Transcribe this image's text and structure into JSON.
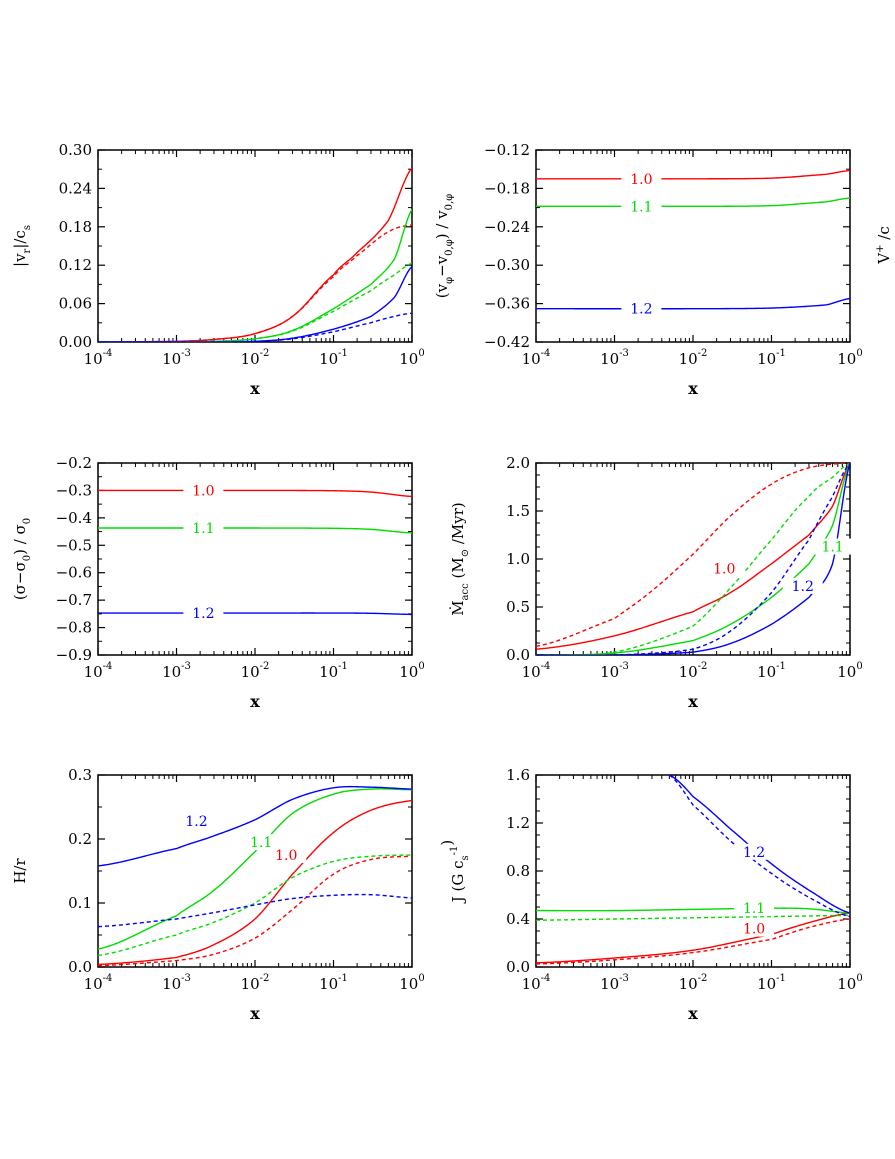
{
  "chart_data": [
    {
      "id": "vr",
      "type": "line",
      "title": "",
      "xscale": "log",
      "xlim": [
        0.0001,
        1
      ],
      "ylim": [
        0,
        0.3
      ],
      "yticks": [
        0,
        0.06,
        0.12,
        0.18,
        0.24,
        0.3
      ],
      "ytick_labels": [
        "0.00",
        "0.06",
        "0.12",
        "0.18",
        "0.24",
        "0.30"
      ],
      "xlabel": "x",
      "ylabel": {
        "main": "|v",
        "sub1": "r",
        "mid": "|/c",
        "sub2": "s"
      },
      "series": [
        {
          "name": "1.0",
          "color": "#ff0000",
          "dash": false,
          "x": [
            0.0001,
            0.001,
            0.003,
            0.01,
            0.03,
            0.1,
            0.2,
            0.5,
            1
          ],
          "y": [
            0.0,
            0.001,
            0.004,
            0.013,
            0.04,
            0.105,
            0.14,
            0.19,
            0.272
          ]
        },
        {
          "name": "1.0",
          "color": "#ff0000",
          "dash": true,
          "x": [
            0.0001,
            0.001,
            0.003,
            0.01,
            0.03,
            0.1,
            0.2,
            0.5,
            1
          ],
          "y": [
            0.0,
            0.001,
            0.004,
            0.013,
            0.04,
            0.102,
            0.135,
            0.172,
            0.183
          ]
        },
        {
          "name": "1.1",
          "color": "#00dd00",
          "dash": false,
          "x": [
            0.0001,
            0.001,
            0.003,
            0.01,
            0.03,
            0.1,
            0.3,
            0.6,
            1
          ],
          "y": [
            0.0,
            0.0,
            0.001,
            0.005,
            0.018,
            0.052,
            0.09,
            0.13,
            0.207
          ]
        },
        {
          "name": "1.1",
          "color": "#00dd00",
          "dash": true,
          "x": [
            0.0001,
            0.001,
            0.003,
            0.01,
            0.03,
            0.1,
            0.3,
            0.6,
            1
          ],
          "y": [
            0.0,
            0.0,
            0.001,
            0.005,
            0.017,
            0.048,
            0.08,
            0.105,
            0.123
          ]
        },
        {
          "name": "1.2",
          "color": "#0000ff",
          "dash": false,
          "x": [
            0.0001,
            0.001,
            0.003,
            0.01,
            0.03,
            0.1,
            0.3,
            0.6,
            1
          ],
          "y": [
            0.0,
            0.0,
            0.0,
            0.001,
            0.006,
            0.02,
            0.04,
            0.07,
            0.118
          ]
        },
        {
          "name": "1.2",
          "color": "#0000ff",
          "dash": true,
          "x": [
            0.0001,
            0.001,
            0.003,
            0.01,
            0.03,
            0.1,
            0.3,
            0.6,
            1
          ],
          "y": [
            0.0,
            0.0,
            0.0,
            0.001,
            0.005,
            0.016,
            0.03,
            0.04,
            0.045
          ]
        }
      ],
      "annotations": []
    },
    {
      "id": "vphi",
      "type": "line",
      "title": "",
      "xscale": "log",
      "xlim": [
        0.0001,
        1
      ],
      "ylim": [
        -0.42,
        -0.12
      ],
      "yticks": [
        -0.42,
        -0.36,
        -0.3,
        -0.24,
        -0.18,
        -0.12
      ],
      "ytick_labels": [
        "−0.42",
        "−0.36",
        "−0.30",
        "−0.24",
        "−0.18",
        "−0.12"
      ],
      "xlabel": "x",
      "ylabel": {
        "main": "(v",
        "sub1": "φ",
        "mid": "−v",
        "sub2": "0,φ",
        "tail": ") / v",
        "sub3": "0,φ"
      },
      "series": [
        {
          "name": "1.0",
          "color": "#ff0000",
          "dash": false,
          "x": [
            0.0001,
            0.01,
            0.1,
            0.5,
            1
          ],
          "y": [
            -0.165,
            -0.165,
            -0.164,
            -0.158,
            -0.152
          ]
        },
        {
          "name": "1.1",
          "color": "#00dd00",
          "dash": false,
          "x": [
            0.0001,
            0.01,
            0.1,
            0.5,
            1
          ],
          "y": [
            -0.208,
            -0.208,
            -0.207,
            -0.201,
            -0.195
          ]
        },
        {
          "name": "1.2",
          "color": "#0000ff",
          "dash": false,
          "x": [
            0.0001,
            0.01,
            0.1,
            0.5,
            1
          ],
          "y": [
            -0.368,
            -0.368,
            -0.367,
            -0.362,
            -0.352
          ]
        }
      ],
      "annotations": [
        {
          "text": "1.0",
          "color": "#ff0000",
          "x": 0.0022,
          "y": -0.165
        },
        {
          "text": "1.1",
          "color": "#00dd00",
          "x": 0.0022,
          "y": -0.208
        },
        {
          "text": "1.2",
          "color": "#0000ff",
          "x": 0.0022,
          "y": -0.368
        }
      ]
    },
    {
      "id": "sigma",
      "type": "line",
      "title": "",
      "xscale": "log",
      "xlim": [
        0.0001,
        1
      ],
      "ylim": [
        -0.9,
        -0.2
      ],
      "yticks": [
        -0.9,
        -0.8,
        -0.7,
        -0.6,
        -0.5,
        -0.4,
        -0.3,
        -0.2
      ],
      "ytick_labels": [
        "−0.9",
        "−0.8",
        "−0.7",
        "−0.6",
        "−0.5",
        "−0.4",
        "−0.3",
        "−0.2"
      ],
      "xlabel": "x",
      "ylabel": {
        "main": "(σ−σ",
        "sub1": "0",
        "mid": ") / σ",
        "sub2": "0"
      },
      "series": [
        {
          "name": "1.0",
          "color": "#ff0000",
          "dash": false,
          "x": [
            0.0001,
            0.01,
            0.1,
            0.3,
            1
          ],
          "y": [
            -0.3,
            -0.3,
            -0.301,
            -0.306,
            -0.322
          ]
        },
        {
          "name": "1.1",
          "color": "#00dd00",
          "dash": false,
          "x": [
            0.0001,
            0.01,
            0.1,
            0.3,
            1
          ],
          "y": [
            -0.437,
            -0.437,
            -0.438,
            -0.442,
            -0.455
          ]
        },
        {
          "name": "1.2",
          "color": "#0000ff",
          "dash": false,
          "x": [
            0.0001,
            0.01,
            0.1,
            0.3,
            1
          ],
          "y": [
            -0.747,
            -0.747,
            -0.747,
            -0.748,
            -0.752
          ]
        }
      ],
      "annotations": [
        {
          "text": "1.0",
          "color": "#ff0000",
          "x": 0.0022,
          "y": -0.3
        },
        {
          "text": "1.1",
          "color": "#00dd00",
          "x": 0.0022,
          "y": -0.437
        },
        {
          "text": "1.2",
          "color": "#0000ff",
          "x": 0.0022,
          "y": -0.747
        }
      ]
    },
    {
      "id": "macc",
      "type": "line",
      "title": "",
      "xscale": "log",
      "xlim": [
        0.0001,
        1
      ],
      "ylim": [
        0,
        2.0
      ],
      "yticks": [
        0,
        0.5,
        1.0,
        1.5,
        2.0
      ],
      "ytick_labels": [
        "0.0",
        "0.5",
        "1.0",
        "1.5",
        "2.0"
      ],
      "xlabel": "x",
      "ylabel": {
        "main": "Ṁ",
        "sub1": "acc",
        "mid": " (M",
        "sub2": "⊙",
        "tail": " /Myr)"
      },
      "series": [
        {
          "name": "1.0",
          "color": "#ff0000",
          "dash": false,
          "x": [
            0.0001,
            0.001,
            0.01,
            0.03,
            0.1,
            0.3,
            0.6,
            1
          ],
          "y": [
            0.06,
            0.2,
            0.45,
            0.65,
            0.95,
            1.25,
            1.55,
            2.0
          ]
        },
        {
          "name": "1.0",
          "color": "#ff0000",
          "dash": true,
          "x": [
            0.0001,
            0.001,
            0.003,
            0.01,
            0.03,
            0.1,
            0.3,
            1
          ],
          "y": [
            0.09,
            0.38,
            0.67,
            1.05,
            1.45,
            1.78,
            1.95,
            2.0
          ]
        },
        {
          "name": "1.1",
          "color": "#00dd00",
          "dash": false,
          "x": [
            0.0001,
            0.001,
            0.01,
            0.03,
            0.1,
            0.3,
            0.6,
            1
          ],
          "y": [
            0.0,
            0.02,
            0.15,
            0.32,
            0.6,
            0.95,
            1.35,
            2.0
          ]
        },
        {
          "name": "1.1",
          "color": "#00dd00",
          "dash": true,
          "x": [
            0.0001,
            0.001,
            0.01,
            0.03,
            0.1,
            0.3,
            0.6,
            1
          ],
          "y": [
            0.0,
            0.03,
            0.3,
            0.7,
            1.2,
            1.65,
            1.85,
            2.0
          ]
        },
        {
          "name": "1.2",
          "color": "#0000ff",
          "dash": false,
          "x": [
            0.0001,
            0.001,
            0.01,
            0.03,
            0.1,
            0.3,
            0.6,
            1
          ],
          "y": [
            0.0,
            0.0,
            0.03,
            0.12,
            0.32,
            0.6,
            0.95,
            2.0
          ]
        },
        {
          "name": "1.2",
          "color": "#0000ff",
          "dash": true,
          "x": [
            0.0001,
            0.001,
            0.01,
            0.03,
            0.1,
            0.3,
            0.6,
            1
          ],
          "y": [
            0.0,
            0.0,
            0.06,
            0.25,
            0.65,
            1.2,
            1.65,
            2.0
          ]
        }
      ],
      "annotations": [
        {
          "text": "1.0",
          "color": "#ff0000",
          "x": 0.025,
          "y": 0.9
        },
        {
          "text": "1.1",
          "color": "#00dd00",
          "x": 0.6,
          "y": 1.13
        },
        {
          "text": "1.2",
          "color": "#0000ff",
          "x": 0.25,
          "y": 0.72
        }
      ]
    },
    {
      "id": "hr",
      "type": "line",
      "title": "",
      "xscale": "log",
      "xlim": [
        0.0001,
        1
      ],
      "ylim": [
        0,
        0.3
      ],
      "yticks": [
        0,
        0.1,
        0.2,
        0.3
      ],
      "ytick_labels": [
        "0.0",
        "0.1",
        "0.2",
        "0.3"
      ],
      "xlabel": "x",
      "ylabel": {
        "main": "H/r"
      },
      "series": [
        {
          "name": "1.0",
          "color": "#ff0000",
          "dash": false,
          "x": [
            0.0001,
            0.001,
            0.003,
            0.01,
            0.03,
            0.1,
            0.3,
            1
          ],
          "y": [
            0.004,
            0.015,
            0.035,
            0.075,
            0.145,
            0.21,
            0.245,
            0.26
          ]
        },
        {
          "name": "1.0",
          "color": "#ff0000",
          "dash": true,
          "x": [
            0.0001,
            0.001,
            0.003,
            0.01,
            0.03,
            0.1,
            0.3,
            1
          ],
          "y": [
            0.002,
            0.01,
            0.02,
            0.045,
            0.09,
            0.145,
            0.168,
            0.173
          ]
        },
        {
          "name": "1.1",
          "color": "#00dd00",
          "dash": false,
          "x": [
            0.0001,
            0.001,
            0.003,
            0.01,
            0.03,
            0.1,
            0.3,
            1
          ],
          "y": [
            0.028,
            0.08,
            0.12,
            0.18,
            0.24,
            0.27,
            0.278,
            0.277
          ]
        },
        {
          "name": "1.1",
          "color": "#00dd00",
          "dash": true,
          "x": [
            0.0001,
            0.001,
            0.003,
            0.01,
            0.03,
            0.1,
            0.3,
            1
          ],
          "y": [
            0.018,
            0.05,
            0.07,
            0.1,
            0.14,
            0.165,
            0.173,
            0.175
          ]
        },
        {
          "name": "1.2",
          "color": "#0000ff",
          "dash": false,
          "x": [
            0.0001,
            0.001,
            0.003,
            0.01,
            0.03,
            0.1,
            0.3,
            1
          ],
          "y": [
            0.158,
            0.185,
            0.205,
            0.23,
            0.262,
            0.28,
            0.281,
            0.278
          ]
        },
        {
          "name": "1.2",
          "color": "#0000ff",
          "dash": true,
          "x": [
            0.0001,
            0.001,
            0.003,
            0.01,
            0.03,
            0.1,
            0.3,
            1
          ],
          "y": [
            0.063,
            0.075,
            0.085,
            0.097,
            0.107,
            0.112,
            0.113,
            0.108
          ]
        }
      ],
      "annotations": [
        {
          "text": "1.2",
          "color": "#0000ff",
          "x": 0.0018,
          "y": 0.228
        },
        {
          "text": "1.1",
          "color": "#00dd00",
          "x": 0.012,
          "y": 0.195
        },
        {
          "text": "1.0",
          "color": "#ff0000",
          "x": 0.025,
          "y": 0.175
        }
      ]
    },
    {
      "id": "j",
      "type": "line",
      "title": "",
      "xscale": "log",
      "xlim": [
        0.0001,
        1
      ],
      "ylim": [
        0,
        1.6
      ],
      "yticks": [
        0,
        0.4,
        0.8,
        1.2,
        1.6
      ],
      "ytick_labels": [
        "0.0",
        "0.4",
        "0.8",
        "1.2",
        "1.6"
      ],
      "xlabel": "x",
      "ylabel": {
        "main": "J (G c",
        "sub1": "s",
        "sup": "-1",
        "tail": ")"
      },
      "series": [
        {
          "name": "1.0",
          "color": "#ff0000",
          "dash": false,
          "x": [
            0.0001,
            0.001,
            0.01,
            0.1,
            0.3,
            1
          ],
          "y": [
            0.035,
            0.075,
            0.14,
            0.27,
            0.37,
            0.45
          ]
        },
        {
          "name": "1.0",
          "color": "#ff0000",
          "dash": true,
          "x": [
            0.0001,
            0.001,
            0.01,
            0.1,
            0.3,
            1
          ],
          "y": [
            0.025,
            0.06,
            0.12,
            0.23,
            0.33,
            0.4
          ]
        },
        {
          "name": "1.1",
          "color": "#00dd00",
          "dash": false,
          "x": [
            0.0001,
            0.001,
            0.01,
            0.1,
            0.3,
            1
          ],
          "y": [
            0.47,
            0.47,
            0.48,
            0.49,
            0.485,
            0.45
          ]
        },
        {
          "name": "1.1",
          "color": "#00dd00",
          "dash": true,
          "x": [
            0.0001,
            0.001,
            0.01,
            0.1,
            0.3,
            1
          ],
          "y": [
            0.39,
            0.4,
            0.41,
            0.42,
            0.425,
            0.43
          ]
        },
        {
          "name": "1.2",
          "color": "#0000ff",
          "dash": false,
          "x": [
            0.005,
            0.01,
            0.03,
            0.1,
            0.3,
            1
          ],
          "y": [
            1.6,
            1.42,
            1.15,
            0.86,
            0.64,
            0.45
          ]
        },
        {
          "name": "1.2",
          "color": "#0000ff",
          "dash": true,
          "x": [
            0.005,
            0.01,
            0.03,
            0.1,
            0.3,
            1
          ],
          "y": [
            1.6,
            1.35,
            1.05,
            0.78,
            0.58,
            0.42
          ]
        }
      ],
      "annotations": [
        {
          "text": "1.2",
          "color": "#0000ff",
          "x": 0.06,
          "y": 0.96
        },
        {
          "text": "1.1",
          "color": "#00dd00",
          "x": 0.06,
          "y": 0.49
        },
        {
          "text": "1.0",
          "color": "#ff0000",
          "x": 0.06,
          "y": 0.32
        }
      ]
    }
  ],
  "cropped_fragment": {
    "text": "V",
    "sup": "+",
    "tail": " /c"
  }
}
